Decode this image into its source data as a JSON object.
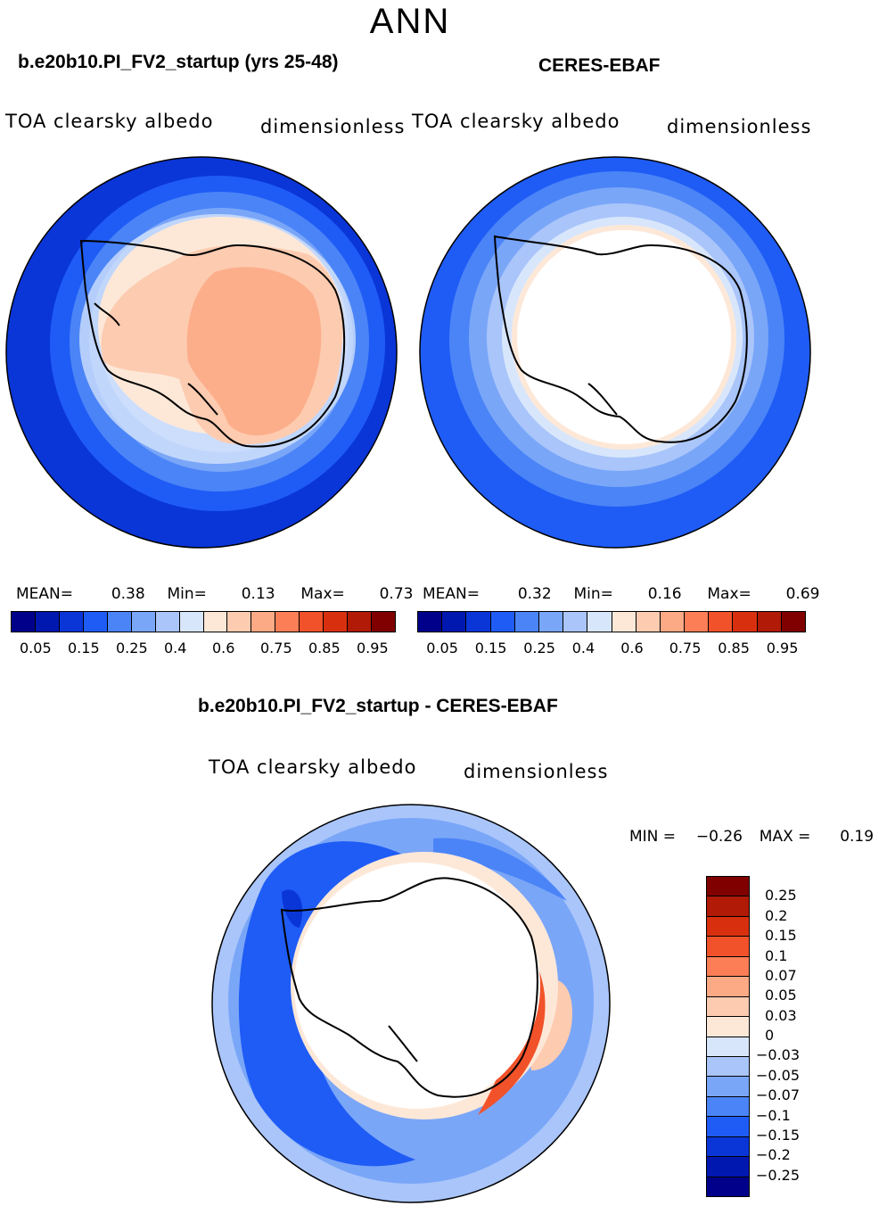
{
  "figure": {
    "title": "ANN"
  },
  "panels": {
    "model": {
      "title": "b.e20b10.PI_FV2_startup (yrs 25-48)",
      "variable": "TOA clearsky albedo",
      "units": "dimensionless",
      "mean_label": "MEAN=",
      "mean": "0.38",
      "min_label": "Min=",
      "min": "0.13",
      "max_label": "Max=",
      "max": "0.73"
    },
    "obs": {
      "title": "CERES-EBAF",
      "variable": "TOA clearsky albedo",
      "units": "dimensionless",
      "mean_label": "MEAN=",
      "mean": "0.32",
      "min_label": "Min=",
      "min": "0.16",
      "max_label": "Max=",
      "max": "0.69"
    },
    "diff": {
      "title": "b.e20b10.PI_FV2_startup - CERES-EBAF",
      "variable": "TOA clearsky albedo",
      "units": "dimensionless",
      "min_label": "MIN =",
      "min": "−0.26",
      "max_label": "MAX =",
      "max": "0.19"
    }
  },
  "colorbar_top": {
    "colors": [
      "#00008a",
      "#0018b0",
      "#0a36d8",
      "#1f5cf5",
      "#4a84f7",
      "#7aa6f8",
      "#a9c5fa",
      "#d8e6fc",
      "#fde8d8",
      "#fdcbb0",
      "#fca985",
      "#fb7e56",
      "#f2522a",
      "#d8300f",
      "#b01a06",
      "#800000"
    ],
    "tick_labels": [
      "0.05",
      "0.15",
      "0.25",
      "0.4",
      "0.6",
      "0.75",
      "0.85",
      "0.95"
    ]
  },
  "colorbar_diff": {
    "colors": [
      "#800000",
      "#b01a06",
      "#d8300f",
      "#f2522a",
      "#fb7e56",
      "#fca985",
      "#fdcbb0",
      "#fde8d8",
      "#d8e6fc",
      "#a9c5fa",
      "#7aa6f8",
      "#4a84f7",
      "#1f5cf5",
      "#0a36d8",
      "#0018b0",
      "#00008a"
    ],
    "tick_labels": [
      "0.25",
      "0.2",
      "0.15",
      "0.1",
      "0.07",
      "0.05",
      "0.03",
      "0",
      "−0.03",
      "−0.05",
      "−0.07",
      "−0.1",
      "−0.15",
      "−0.2",
      "−0.25"
    ]
  }
}
